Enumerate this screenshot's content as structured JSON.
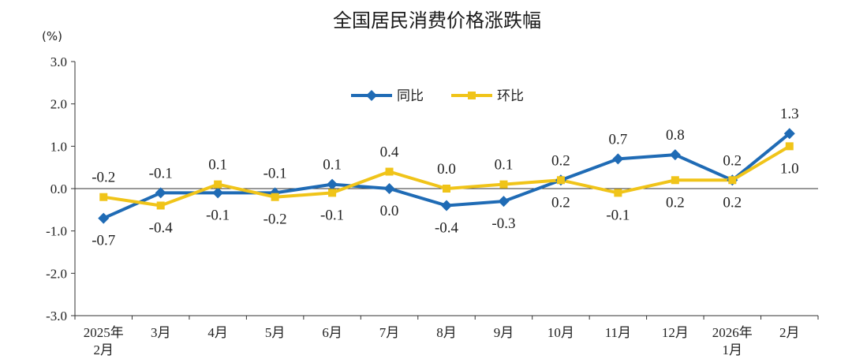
{
  "chart_data": {
    "type": "line",
    "title": "全国居民消费价格涨跌幅",
    "unit": "(%)",
    "categories": [
      [
        "2025年",
        "2月"
      ],
      [
        "3月"
      ],
      [
        "4月"
      ],
      [
        "5月"
      ],
      [
        "6月"
      ],
      [
        "7月"
      ],
      [
        "8月"
      ],
      [
        "9月"
      ],
      [
        "10月"
      ],
      [
        "11月"
      ],
      [
        "12月"
      ],
      [
        "2026年",
        "1月"
      ],
      [
        "2月"
      ]
    ],
    "ylim": [
      -3.0,
      3.0
    ],
    "yticks": [
      "3.0",
      "2.0",
      "1.0",
      "0.0",
      "-1.0",
      "-2.0",
      "-3.0"
    ],
    "ytick_values": [
      3,
      2,
      1,
      0,
      -1,
      -2,
      -3
    ],
    "legend_position": "top-center",
    "series": [
      {
        "name": "同比",
        "color": "#1f6bb5",
        "marker": "diamond",
        "values": [
          -0.7,
          -0.1,
          -0.1,
          -0.1,
          0.1,
          0.0,
          -0.4,
          -0.3,
          0.2,
          0.7,
          0.8,
          0.2,
          1.3
        ],
        "labels": [
          "-0.7",
          "-0.1",
          "-0.1",
          "-0.1",
          "0.1",
          "0.0",
          "-0.4",
          "-0.3",
          "0.2",
          "0.7",
          "0.8",
          "0.2",
          "1.3"
        ],
        "label_side": [
          "below",
          "above",
          "below",
          "above",
          "above",
          "below",
          "below",
          "below",
          "above",
          "above",
          "above",
          "above",
          "above"
        ]
      },
      {
        "name": "环比",
        "color": "#f0c419",
        "marker": "square",
        "values": [
          -0.2,
          -0.4,
          0.1,
          -0.2,
          -0.1,
          0.4,
          0.0,
          0.1,
          0.2,
          -0.1,
          0.2,
          0.2,
          1.0
        ],
        "labels": [
          "-0.2",
          "-0.4",
          "0.1",
          "-0.2",
          "-0.1",
          "0.4",
          "0.0",
          "0.1",
          "0.2",
          "-0.1",
          "0.2",
          "0.2",
          "1.0"
        ],
        "label_side": [
          "above",
          "below",
          "above",
          "below",
          "below",
          "above",
          "above",
          "above",
          "below",
          "below",
          "below",
          "below",
          "below"
        ]
      }
    ]
  }
}
